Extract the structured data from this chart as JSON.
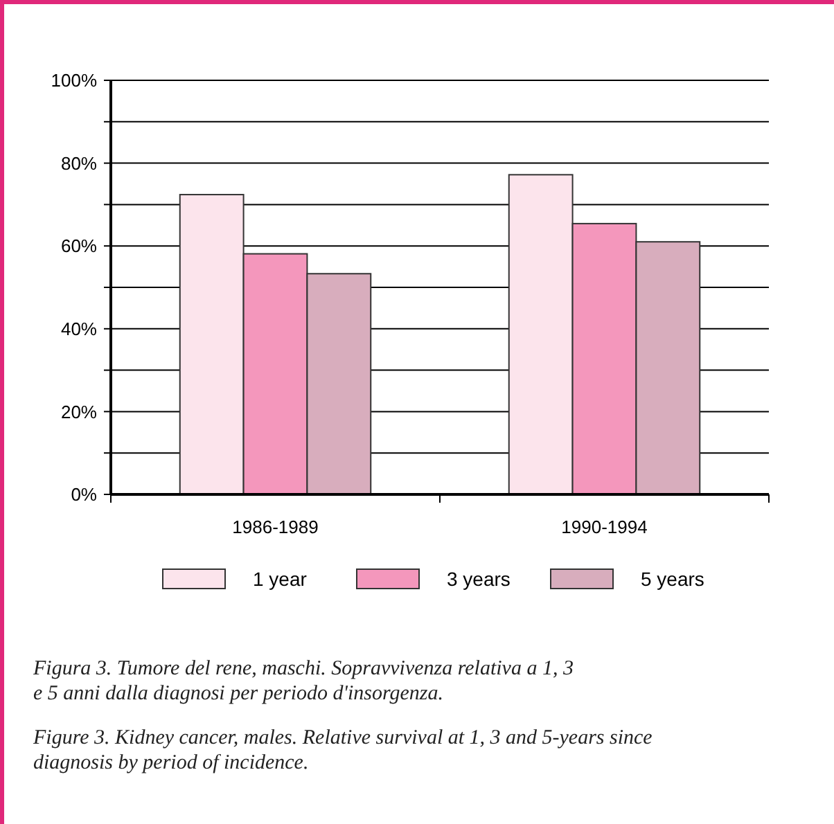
{
  "chart_data": {
    "type": "bar",
    "categories": [
      "1986-1989",
      "1990-1994"
    ],
    "series": [
      {
        "name": "1 year",
        "color": "#fce4ec",
        "values": [
          72.4,
          77.2
        ]
      },
      {
        "name": "3 years",
        "color": "#f497bc",
        "values": [
          58.1,
          65.4
        ]
      },
      {
        "name": "5 years",
        "color": "#d8adbd",
        "values": [
          53.3,
          61.0
        ]
      }
    ],
    "ylim": [
      0,
      100
    ],
    "yticks": [
      {
        "value": 0,
        "label": "0%"
      },
      {
        "value": 10,
        "label": null
      },
      {
        "value": 20,
        "label": "20%"
      },
      {
        "value": 30,
        "label": null
      },
      {
        "value": 40,
        "label": "40%"
      },
      {
        "value": 50,
        "label": null
      },
      {
        "value": 60,
        "label": "60%"
      },
      {
        "value": 70,
        "label": null
      },
      {
        "value": 80,
        "label": "80%"
      },
      {
        "value": 90,
        "label": null
      },
      {
        "value": 100,
        "label": "100%"
      }
    ],
    "grid": "y",
    "legend": "bottom",
    "annotations": [
      "Figura 3. Tumore del rene, maschi. Sopravvivenza relativa a 1, 3\ne 5 anni dalla diagnosi per periodo d'insorgenza.",
      "Figure 3. Kidney cancer, males. Relative survival at 1, 3 and 5-years since\ndiagnosis by period of incidence."
    ]
  }
}
